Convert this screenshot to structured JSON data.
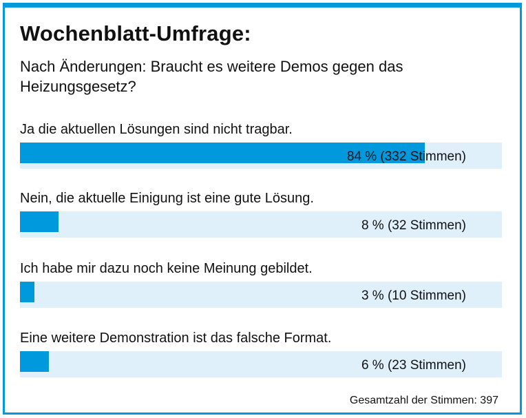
{
  "poll": {
    "title": "Wochenblatt-Umfrage:",
    "question": "Nach Änderungen: Braucht es weitere Demos gegen das Heizungsgesetz?",
    "total_label": "Gesamtzahl der Stimmen: 397"
  },
  "colors": {
    "accent": "#0099dd",
    "track": "#dff0fb",
    "text": "#111111"
  },
  "chart_data": {
    "type": "bar",
    "title": "Wochenblatt-Umfrage:",
    "subtitle": "Nach Änderungen: Braucht es weitere Demos gegen das Heizungsgesetz?",
    "categories": [
      "Ja die aktuellen Lösungen sind nicht tragbar.",
      "Nein, die aktuelle Einigung ist eine gute Lösung.",
      "Ich habe mir dazu noch keine Meinung gebildet.",
      "Eine weitere Demonstration ist das falsche Format."
    ],
    "percent": [
      84,
      8,
      3,
      6
    ],
    "votes": [
      332,
      32,
      10,
      23
    ],
    "value_labels": [
      "84 % (332 Stimmen)",
      "8 % (32 Stimmen)",
      "3 % (10 Stimmen)",
      "6 % (23 Stimmen)"
    ],
    "total_votes": 397,
    "xlim": [
      0,
      100
    ],
    "orientation": "horizontal",
    "grid": false
  }
}
